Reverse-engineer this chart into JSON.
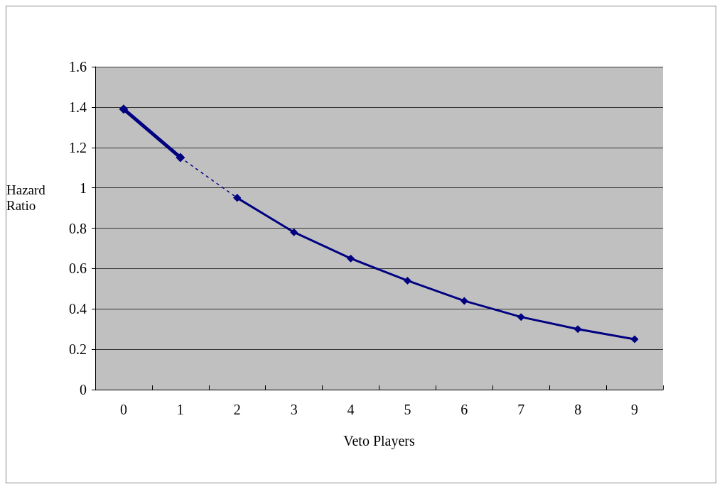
{
  "chart_data": {
    "type": "line",
    "xlabel": "Veto Players",
    "ylabel": "Hazard Ratio",
    "categories": [
      "0",
      "1",
      "2",
      "3",
      "4",
      "5",
      "6",
      "7",
      "8",
      "9"
    ],
    "series": [
      {
        "color": "#000080",
        "line_style": "solid",
        "values": [
          1.39,
          1.15,
          null,
          null,
          null,
          null,
          null,
          null,
          null,
          null
        ]
      },
      {
        "color": "#000080",
        "line_style": "dotted",
        "values": [
          null,
          1.15,
          0.95,
          null,
          null,
          null,
          null,
          null,
          null,
          null
        ]
      },
      {
        "color": "#000080",
        "line_style": "solid",
        "values": [
          null,
          null,
          0.95,
          0.78,
          0.65,
          0.54,
          0.44,
          0.36,
          0.3,
          0.25
        ]
      }
    ],
    "ylim": [
      0,
      1.6
    ],
    "yticks": [
      0,
      0.2,
      0.4,
      0.6,
      0.8,
      1,
      1.2,
      1.4,
      1.6
    ],
    "grid": "y",
    "marker": "diamond"
  }
}
